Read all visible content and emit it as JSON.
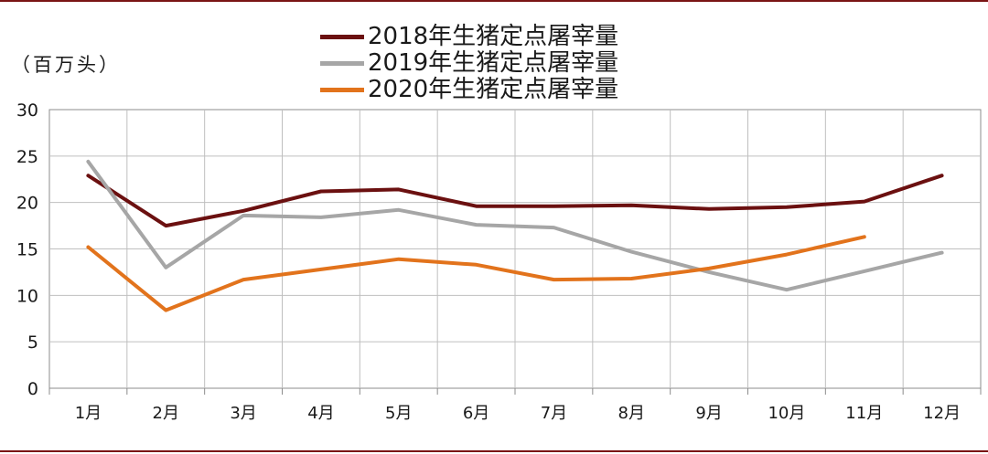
{
  "unit_label": "（百万头）",
  "chart_data": {
    "type": "line",
    "categories": [
      "1月",
      "2月",
      "3月",
      "4月",
      "5月",
      "6月",
      "7月",
      "8月",
      "9月",
      "10月",
      "11月",
      "12月"
    ],
    "ylim": [
      0,
      30
    ],
    "yticks": [
      0,
      5,
      10,
      15,
      20,
      25,
      30
    ],
    "grid": true,
    "legend_position": "top-center",
    "series": [
      {
        "name": "2018年生猪定点屠宰量",
        "color": "#6b1010",
        "values": [
          22.9,
          17.5,
          19.1,
          21.2,
          21.4,
          19.6,
          19.6,
          19.7,
          19.3,
          19.5,
          20.1,
          22.9
        ]
      },
      {
        "name": "2019年生猪定点屠宰量",
        "color": "#a6a6a6",
        "values": [
          24.4,
          13.0,
          18.6,
          18.4,
          19.2,
          17.6,
          17.3,
          14.7,
          12.5,
          10.6,
          12.6,
          14.6
        ]
      },
      {
        "name": "2020年生猪定点屠宰量",
        "color": "#e2731c",
        "values": [
          15.2,
          8.4,
          11.7,
          12.8,
          13.9,
          13.3,
          11.7,
          11.8,
          12.9,
          14.4,
          16.3,
          null
        ]
      }
    ]
  }
}
